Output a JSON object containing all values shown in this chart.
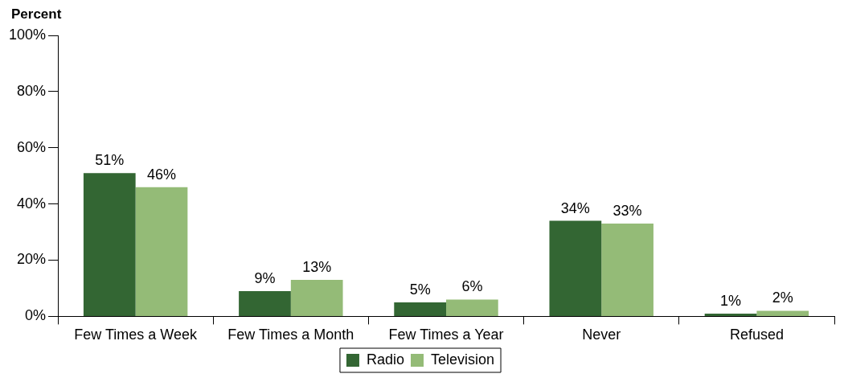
{
  "chart_data": {
    "type": "bar",
    "ylabel": "Percent",
    "categories": [
      "Few Times a Week",
      "Few Times a Month",
      "Few Times a Year",
      "Never",
      "Refused"
    ],
    "series": [
      {
        "name": "Radio",
        "color": "#336633",
        "values": [
          51,
          9,
          5,
          34,
          1
        ],
        "value_labels": [
          "51%",
          "9%",
          "5%",
          "34%",
          "1%"
        ]
      },
      {
        "name": "Television",
        "color": "#94bb77",
        "values": [
          46,
          13,
          6,
          33,
          2
        ],
        "value_labels": [
          "46%",
          "13%",
          "6%",
          "33%",
          "2%"
        ]
      }
    ],
    "ylim": [
      0,
      100
    ],
    "yticks": [
      {
        "value": 0,
        "label": "0%"
      },
      {
        "value": 20,
        "label": "20%"
      },
      {
        "value": 40,
        "label": "40%"
      },
      {
        "value": 60,
        "label": "60%"
      },
      {
        "value": 80,
        "label": "80%"
      },
      {
        "value": 100,
        "label": "100%"
      }
    ],
    "grid": false,
    "legend": "bottom"
  }
}
